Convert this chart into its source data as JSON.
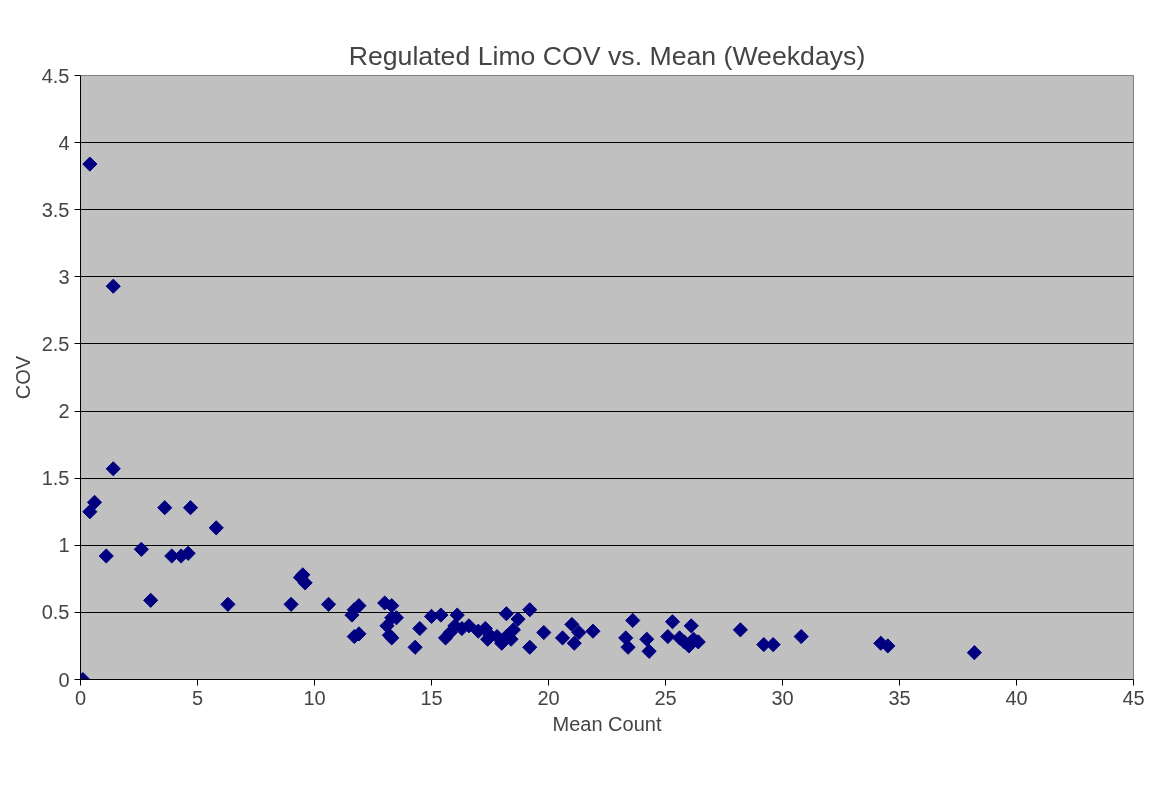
{
  "chart_data": {
    "type": "scatter",
    "title": "Regulated Limo COV vs. Mean (Weekdays)",
    "xlabel": "Mean Count",
    "ylabel": "COV",
    "xlim": [
      0,
      45
    ],
    "xticks": [
      0,
      5,
      10,
      15,
      20,
      25,
      30,
      35,
      40,
      45
    ],
    "ylim": [
      0,
      4.5
    ],
    "yticks": [
      0,
      0.5,
      1,
      1.5,
      2,
      2.5,
      3,
      3.5,
      4,
      4.5
    ],
    "grid": "y",
    "marker": "diamond",
    "series": [
      {
        "color": "#000080",
        "x": [
          0.1,
          0.4,
          1.4,
          1.4,
          0.6,
          0.4,
          1.1,
          2.6,
          3.0,
          3.6,
          3.9,
          4.3,
          4.6,
          4.7,
          5.8,
          6.3,
          9.0,
          9.4,
          9.5,
          9.6,
          10.6,
          11.6,
          11.7,
          11.9,
          11.7,
          11.9,
          13.0,
          13.3,
          13.1,
          13.3,
          13.2,
          13.3,
          13.5,
          14.3,
          14.5,
          15.0,
          15.4,
          15.6,
          15.8,
          16.0,
          16.1,
          16.3,
          16.6,
          17.0,
          17.3,
          17.4,
          17.5,
          17.8,
          18.0,
          18.2,
          18.2,
          18.4,
          18.5,
          18.7,
          19.2,
          19.2,
          19.8,
          20.6,
          21.0,
          21.1,
          21.3,
          21.9,
          23.3,
          23.4,
          23.6,
          24.2,
          24.3,
          25.1,
          25.3,
          25.6,
          25.8,
          26.0,
          26.1,
          26.2,
          26.4,
          28.2,
          29.2,
          29.6,
          30.8,
          34.2,
          34.5,
          38.2
        ],
        "values": [
          0,
          3.84,
          2.93,
          1.57,
          1.32,
          1.25,
          0.92,
          0.97,
          0.59,
          1.28,
          0.92,
          0.92,
          0.94,
          1.28,
          1.13,
          0.56,
          0.56,
          0.76,
          0.78,
          0.72,
          0.56,
          0.48,
          0.52,
          0.55,
          0.32,
          0.34,
          0.57,
          0.55,
          0.4,
          0.46,
          0.33,
          0.31,
          0.46,
          0.24,
          0.38,
          0.47,
          0.48,
          0.31,
          0.35,
          0.4,
          0.48,
          0.38,
          0.4,
          0.36,
          0.38,
          0.3,
          0.33,
          0.32,
          0.27,
          0.49,
          0.32,
          0.3,
          0.37,
          0.45,
          0.52,
          0.24,
          0.35,
          0.31,
          0.41,
          0.27,
          0.35,
          0.36,
          0.31,
          0.24,
          0.44,
          0.3,
          0.21,
          0.32,
          0.43,
          0.31,
          0.28,
          0.25,
          0.4,
          0.3,
          0.28,
          0.37,
          0.26,
          0.26,
          0.32,
          0.27,
          0.25,
          0.2
        ]
      }
    ]
  }
}
